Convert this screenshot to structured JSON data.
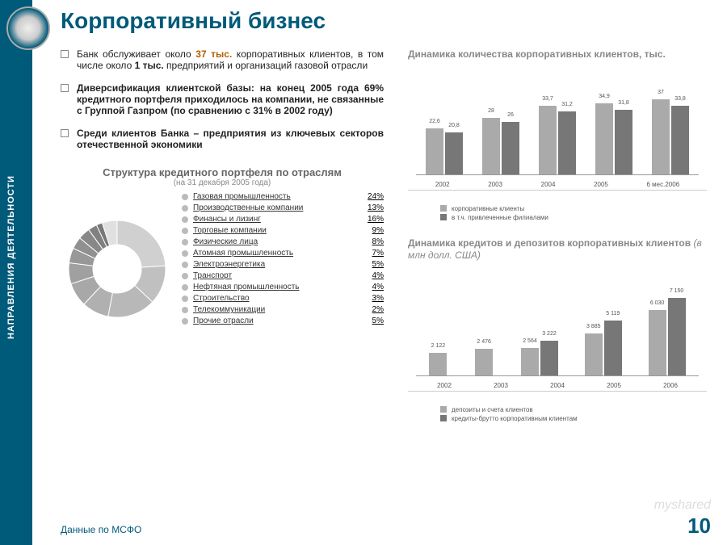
{
  "sidebar_text": "НАПРАВЛЕНИЯ ДЕЯТЕЛЬНОСТИ",
  "title": "Корпоративный бизнес",
  "bullets": [
    "Банк обслуживает около <span class='hl'>37 тыс.</span> корпоративных клиентов, в том числе около <b>1 тыс.</b> предприятий и организаций газовой отрасли",
    "<b>Диверсификация клиентской базы: на конец 2005 года 69% кредитного портфеля приходилось на компании, не связанные с Группой Газпром (по сравнению с 31% в 2002 году)</b>",
    "<b>Среди клиентов Банка – предприятия из ключевых секторов отечественной экономики</b>"
  ],
  "portfolio": {
    "title": "Структура кредитного портфеля по отраслям",
    "subtitle": "(на 31 декабря 2005 года)",
    "items": [
      {
        "label": "Газовая промышленность",
        "value": "24%"
      },
      {
        "label": "Производственные компании",
        "value": "13%"
      },
      {
        "label": "Финансы и лизинг",
        "value": "16%"
      },
      {
        "label": "Торговые компании",
        "value": "9%"
      },
      {
        "label": "Физические лица",
        "value": "8%"
      },
      {
        "label": "Атомная промышленность",
        "value": "7%"
      },
      {
        "label": "Электроэнергетика",
        "value": "5%"
      },
      {
        "label": "Транспорт",
        "value": "4%"
      },
      {
        "label": "Нефтяная промышленность",
        "value": "4%"
      },
      {
        "label": "Строительство",
        "value": "3%"
      },
      {
        "label": "Телекоммуникации",
        "value": "2%"
      },
      {
        "label": "Прочие отрасли",
        "value": "5%"
      }
    ],
    "slice_colors": [
      "#d0d0d0",
      "#c0c0c0",
      "#b8b8b8",
      "#b0b0b0",
      "#a8a8a8",
      "#a0a0a0",
      "#989898",
      "#909090",
      "#888888",
      "#808080",
      "#787878",
      "#e0e0e0"
    ],
    "slice_values": [
      24,
      13,
      16,
      9,
      8,
      7,
      5,
      4,
      4,
      3,
      2,
      5
    ]
  },
  "chart1": {
    "title": "Динамика количества корпоративных клиентов, тыс.",
    "categories": [
      "2002",
      "2003",
      "2004",
      "2005",
      "6 мес.2006"
    ],
    "series_a": {
      "label": "корпоративные клиенты",
      "color": "#aaaaaa",
      "values": [
        22.6,
        28.0,
        33.7,
        34.9,
        37.0
      ]
    },
    "series_b": {
      "label": "в т.ч. привлеченные филиалами",
      "color": "#777777",
      "values": [
        20.8,
        26.0,
        31.2,
        31.8,
        33.8
      ]
    },
    "ymax": 40
  },
  "chart2": {
    "title_a": "Динамика кредитов и депозитов корпоративных клиентов ",
    "title_b": "(в млн долл. США)",
    "categories": [
      "2002",
      "2003",
      "2004",
      "2005",
      "2006"
    ],
    "series_a": {
      "label": "депозиты и счета клиентов",
      "color": "#aaaaaa",
      "values": [
        2122,
        2476,
        2564,
        3885,
        6030
      ]
    },
    "series_b": {
      "label": "кредиты-брутто корпоративным клиентам",
      "color": "#777777",
      "values": [
        null,
        null,
        3222,
        5119,
        7150
      ]
    },
    "ymax": 7500
  },
  "footer": "Данные по МСФО",
  "page": "10",
  "watermark": "myshared"
}
